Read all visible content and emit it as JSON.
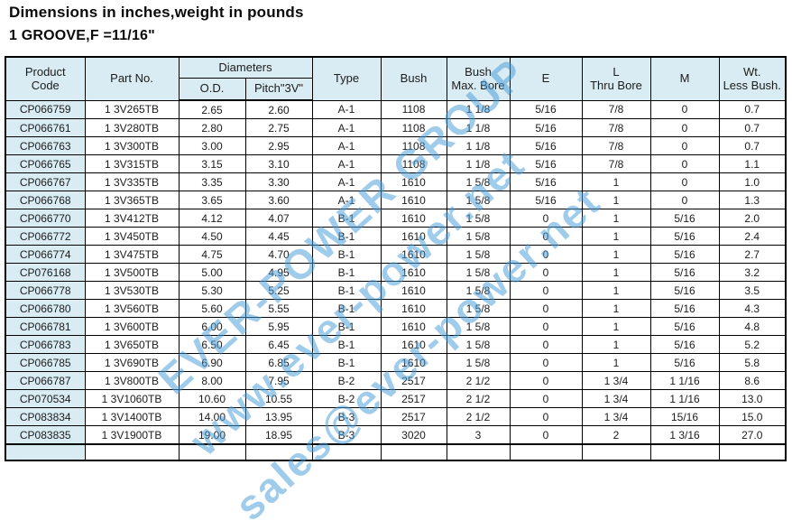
{
  "page": {
    "title": "Dimensions in inches,weight in pounds",
    "subtitle": "1 GROOVE,F =11/16\""
  },
  "watermark": {
    "color": "#489ed8",
    "lines": [
      "EVER-POWER GROUP",
      "www.ever-power.net",
      "sales@ever-power.net"
    ]
  },
  "table": {
    "header": {
      "product_code": "Product\nCode",
      "part_no": "Part No.",
      "diameters": "Diameters",
      "od": "O.D.",
      "pitch": "Pitch\"3V\"",
      "type": "Type",
      "bush": "Bush",
      "bush_max_bore": "Bush\nMax. Bore",
      "e": "E",
      "l_thru_bore": "L\nThru Bore",
      "m": "M",
      "wt_less_bush": "Wt.\nLess Bush."
    },
    "column_keys": [
      "product-code-cell",
      "part-no-cell",
      "od-cell",
      "pitch-3v-cell",
      "type-cell",
      "bush-cell",
      "bush-max-bore-cell",
      "e-cell",
      "l-thru-bore-cell",
      "m-cell",
      "wt-less-bush-cell"
    ],
    "rows": [
      [
        "CP066759",
        "1 3V265TB",
        "2.65",
        "2.60",
        "A-1",
        "1108",
        "1 1/8",
        "5/16",
        "7/8",
        "0",
        "0.7"
      ],
      [
        "CP066761",
        "1 3V280TB",
        "2.80",
        "2.75",
        "A-1",
        "1108",
        "1 1/8",
        "5/16",
        "7/8",
        "0",
        "0.7"
      ],
      [
        "CP066763",
        "1 3V300TB",
        "3.00",
        "2.95",
        "A-1",
        "1108",
        "1 1/8",
        "5/16",
        "7/8",
        "0",
        "0.7"
      ],
      [
        "CP066765",
        "1 3V315TB",
        "3.15",
        "3.10",
        "A-1",
        "1108",
        "1 1/8",
        "5/16",
        "7/8",
        "0",
        "1.1"
      ],
      [
        "CP066767",
        "1 3V335TB",
        "3.35",
        "3.30",
        "A-1",
        "1610",
        "1 5/8",
        "5/16",
        "1",
        "0",
        "1.0"
      ],
      [
        "CP066768",
        "1 3V365TB",
        "3.65",
        "3.60",
        "A-1",
        "1610",
        "1 5/8",
        "5/16",
        "1",
        "0",
        "1.3"
      ],
      [
        "CP066770",
        "1 3V412TB",
        "4.12",
        "4.07",
        "B-1",
        "1610",
        "1 5/8",
        "0",
        "1",
        "5/16",
        "2.0"
      ],
      [
        "CP066772",
        "1 3V450TB",
        "4.50",
        "4.45",
        "B-1",
        "1610",
        "1 5/8",
        "0",
        "1",
        "5/16",
        "2.4"
      ],
      [
        "CP066774",
        "1 3V475TB",
        "4.75",
        "4.70",
        "B-1",
        "1610",
        "1 5/8",
        "0",
        "1",
        "5/16",
        "2.7"
      ],
      [
        "CP076168",
        "1 3V500TB",
        "5.00",
        "4.95",
        "B-1",
        "1610",
        "1 5/8",
        "0",
        "1",
        "5/16",
        "3.2"
      ],
      [
        "CP066778",
        "1 3V530TB",
        "5.30",
        "5.25",
        "B-1",
        "1610",
        "1 5/8",
        "0",
        "1",
        "5/16",
        "3.5"
      ],
      [
        "CP066780",
        "1 3V560TB",
        "5.60",
        "5.55",
        "B-1",
        "1610",
        "1 5/8",
        "0",
        "1",
        "5/16",
        "4.3"
      ],
      [
        "CP066781",
        "1 3V600TB",
        "6.00",
        "5.95",
        "B-1",
        "1610",
        "1 5/8",
        "0",
        "1",
        "5/16",
        "4.8"
      ],
      [
        "CP066783",
        "1 3V650TB",
        "6.50",
        "6.45",
        "B-1",
        "1610",
        "1 5/8",
        "0",
        "1",
        "5/16",
        "5.2"
      ],
      [
        "CP066785",
        "1 3V690TB",
        "6.90",
        "6.85",
        "B-1",
        "1610",
        "1 5/8",
        "0",
        "1",
        "5/16",
        "5.8"
      ],
      [
        "CP066787",
        "1 3V800TB",
        "8.00",
        "7.95",
        "B-2",
        "2517",
        "2 1/2",
        "0",
        "1 3/4",
        "1 1/16",
        "8.6"
      ],
      [
        "CP070534",
        "1 3V1060TB",
        "10.60",
        "10.55",
        "B-2",
        "2517",
        "2 1/2",
        "0",
        "1 3/4",
        "1 1/16",
        "13.0"
      ],
      [
        "CP083834",
        "1 3V1400TB",
        "14.00",
        "13.95",
        "B-3",
        "2517",
        "2 1/2",
        "0",
        "1 3/4",
        "15/16",
        "15.0"
      ],
      [
        "CP083835",
        "1 3V1900TB",
        "19.00",
        "18.95",
        "B-3",
        "3020",
        "3",
        "0",
        "2",
        "1 3/16",
        "27.0"
      ]
    ]
  }
}
